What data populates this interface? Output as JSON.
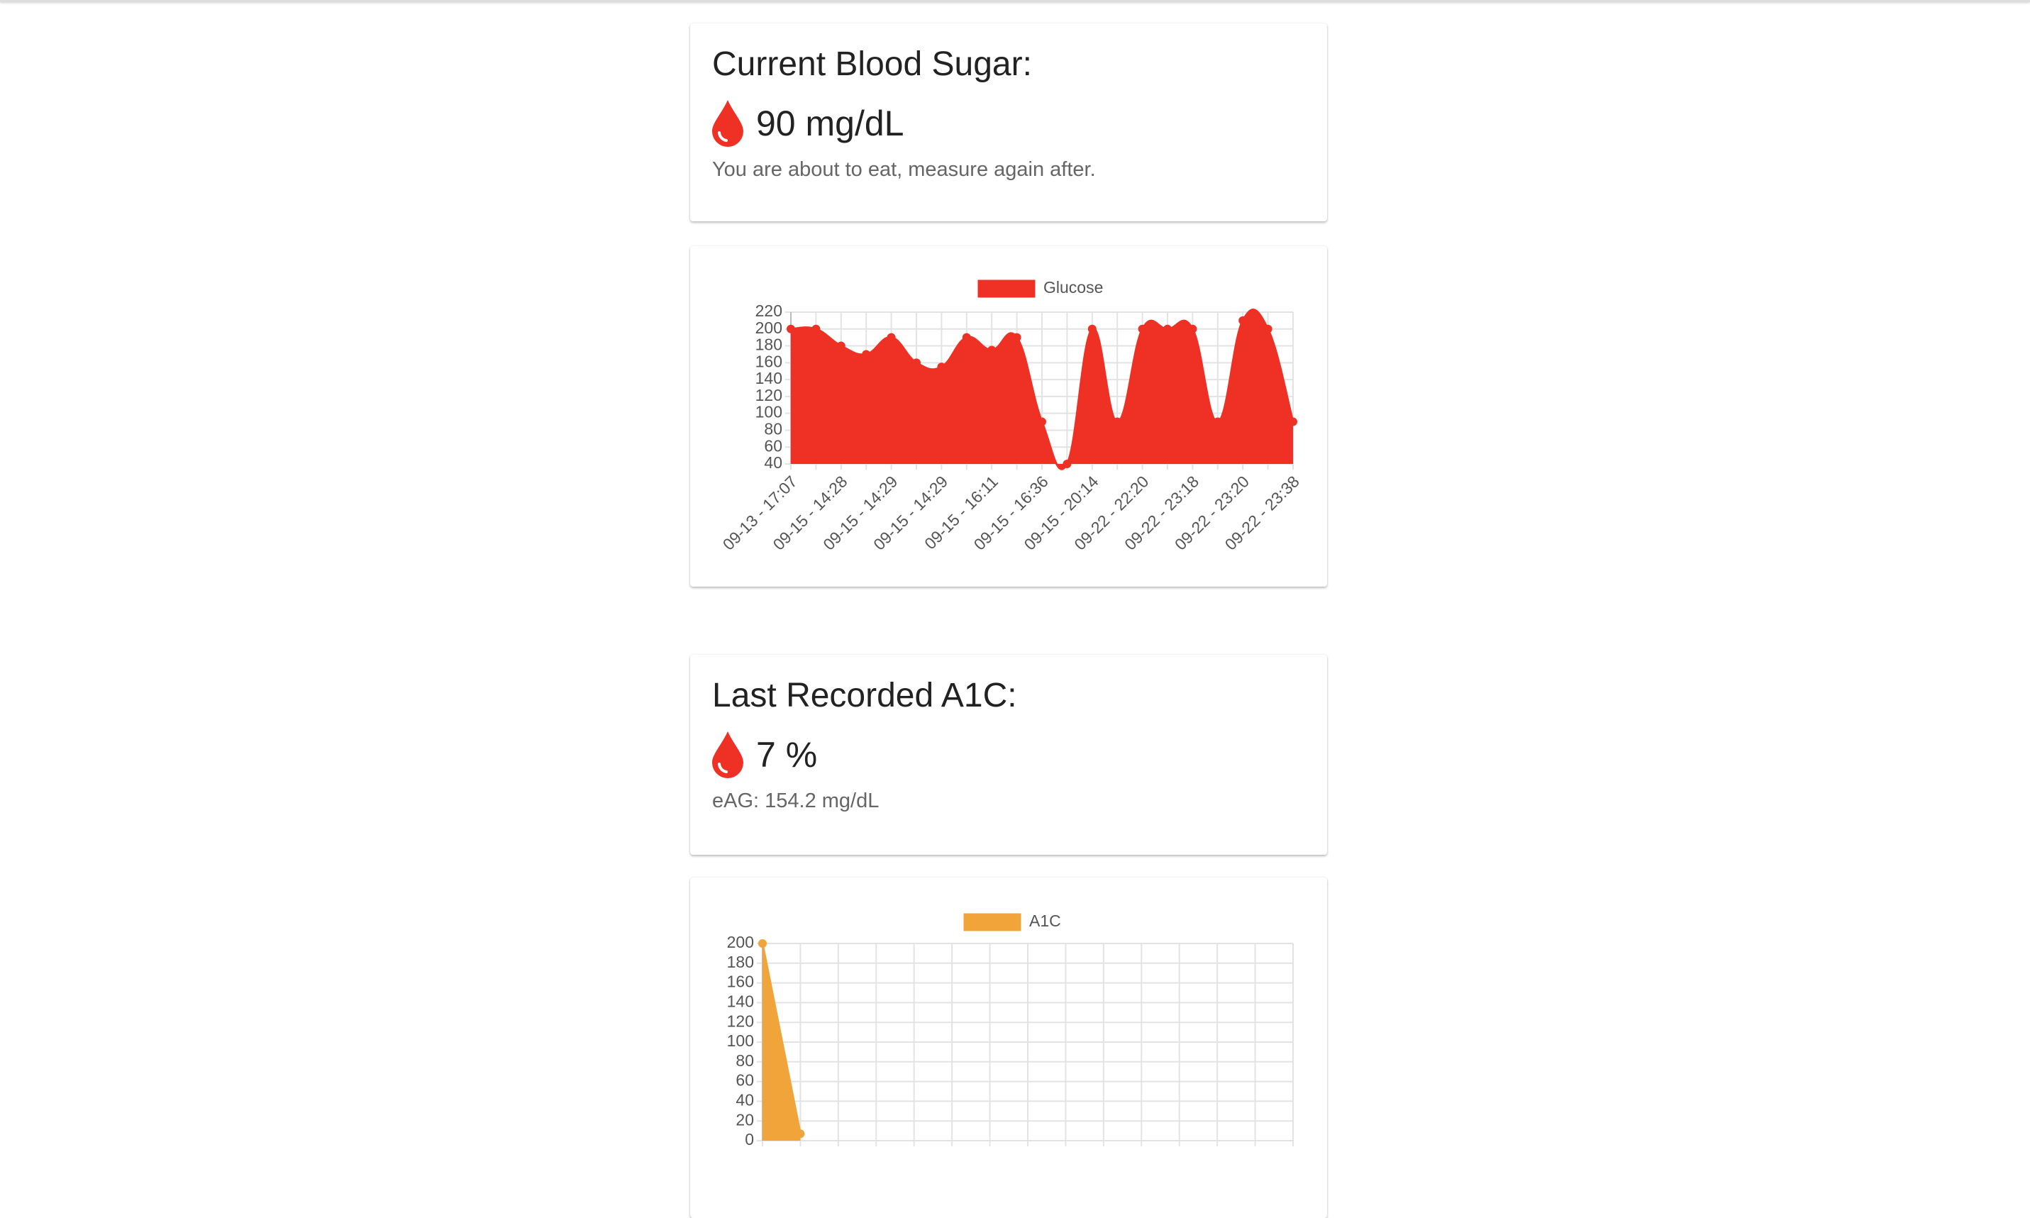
{
  "cards": [
    {
      "title": "Current Blood Sugar:",
      "value": "90 mg/dL",
      "note": "You are about to eat, measure again after."
    },
    {
      "title": "Last Recorded A1C:",
      "value": "7 %",
      "note": "eAG: 154.2 mg/dL"
    }
  ],
  "chart_data": [
    {
      "type": "area",
      "categories": [
        "09-13 - 17:07",
        null,
        "09-15 - 14:28",
        null,
        "09-15 - 14:29",
        null,
        "09-15 - 14:29",
        null,
        "09-15 - 16:11",
        null,
        "09-15 - 16:36",
        null,
        "09-15 - 20:14",
        null,
        "09-22 - 22:20",
        null,
        "09-22 - 23:18",
        null,
        "09-22 - 23:20",
        null,
        "09-22 - 23:38"
      ],
      "series": [
        {
          "name": "Glucose",
          "color": "#ee3124",
          "values": [
            200,
            200,
            180,
            170,
            190,
            160,
            155,
            190,
            175,
            190,
            90,
            40,
            200,
            90,
            200,
            200,
            200,
            90,
            210,
            200,
            90
          ]
        }
      ],
      "ylim": [
        40,
        220
      ],
      "yticks": [
        40,
        60,
        80,
        100,
        120,
        140,
        160,
        180,
        200,
        220
      ],
      "grid": true
    },
    {
      "type": "area",
      "categories": [
        null,
        null,
        null,
        null,
        null,
        null,
        null,
        null,
        null,
        null,
        null,
        null,
        null,
        null,
        null
      ],
      "series": [
        {
          "name": "A1C",
          "color": "#f0a43a",
          "values": [
            200,
            7,
            null,
            null,
            null,
            null,
            null,
            null,
            null,
            null,
            null,
            null,
            null,
            null,
            null
          ]
        }
      ],
      "ylim": [
        0,
        200
      ],
      "yticks": [
        0,
        20,
        40,
        60,
        80,
        100,
        120,
        140,
        160,
        180,
        200
      ],
      "grid": true
    }
  ]
}
